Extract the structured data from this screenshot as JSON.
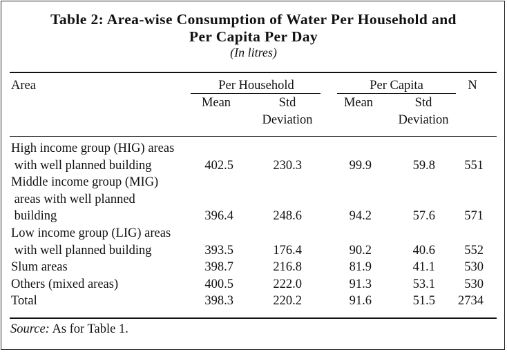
{
  "title_line1": "Table 2: Area-wise Consumption of Water Per Household and",
  "title_line2": "Per Capita Per Day",
  "unit": "(In litres)",
  "headers": {
    "area": "Area",
    "per_household": "Per Household",
    "per_capita": "Per Capita",
    "n": "N",
    "mean": "Mean",
    "std_line1": "Std",
    "std_line2": "Deviation"
  },
  "rows": [
    {
      "label_lines": [
        "High income group (HIG) areas",
        " with well planned building"
      ],
      "hh_mean": "402.5",
      "hh_sd": "230.3",
      "pc_mean": "99.9",
      "pc_sd": "59.8",
      "n": "551"
    },
    {
      "label_lines": [
        "Middle income group (MIG)",
        " areas with well planned",
        " building"
      ],
      "hh_mean": "396.4",
      "hh_sd": "248.6",
      "pc_mean": "94.2",
      "pc_sd": "57.6",
      "n": "571"
    },
    {
      "label_lines": [
        "Low income group (LIG) areas",
        " with well planned building"
      ],
      "hh_mean": "393.5",
      "hh_sd": "176.4",
      "pc_mean": "90.2",
      "pc_sd": "40.6",
      "n": "552"
    },
    {
      "label_lines": [
        "Slum areas"
      ],
      "hh_mean": "398.7",
      "hh_sd": "216.8",
      "pc_mean": "81.9",
      "pc_sd": "41.1",
      "n": "530"
    },
    {
      "label_lines": [
        "Others (mixed areas)"
      ],
      "hh_mean": "400.5",
      "hh_sd": "222.0",
      "pc_mean": "91.3",
      "pc_sd": "53.1",
      "n": "530"
    },
    {
      "label_lines": [
        "Total"
      ],
      "hh_mean": "398.3",
      "hh_sd": "220.2",
      "pc_mean": "91.6",
      "pc_sd": "51.5",
      "n": "2734"
    }
  ],
  "source_label": "Source:",
  "source_text": " As for Table 1."
}
